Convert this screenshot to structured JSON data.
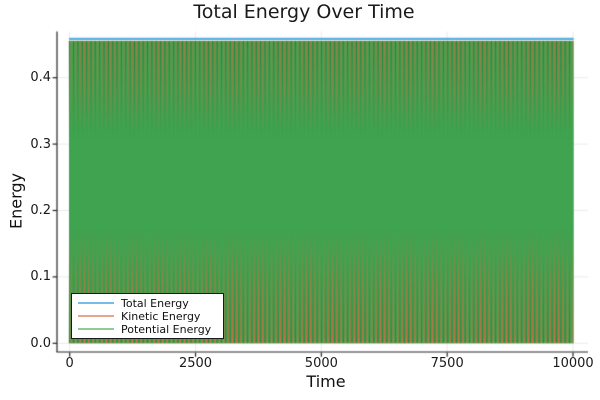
{
  "title": "Total Energy Over Time",
  "chart_data": {
    "type": "line",
    "title": "Total Energy Over Time",
    "xlabel": "Time",
    "ylabel": "Energy",
    "x_range": [
      0,
      10000
    ],
    "xticks": [
      0,
      2500,
      5000,
      7500,
      10000
    ],
    "xtick_labels": [
      "0",
      "2500",
      "5000",
      "7500",
      "10000"
    ],
    "yticks": [
      0.0,
      0.1,
      0.2,
      0.3,
      0.4
    ],
    "ytick_labels": [
      "0.0",
      "0.1",
      "0.2",
      "0.3",
      "0.4"
    ],
    "grid": true,
    "grid_color": "#ececec",
    "spine_color": "#262626",
    "legend_position": "lower left",
    "total_energy": 0.4585,
    "oscillation_min": 0.0,
    "oscillation_max": 0.4555,
    "n_oscillations_visible": 116,
    "series": [
      {
        "name": "Total Energy",
        "legend_color": "#76bde8",
        "plot_color": "#56b1e4",
        "shape": "constant",
        "value": 0.4585
      },
      {
        "name": "Kinetic Energy",
        "legend_color": "#e9a48f",
        "plot_color": "#d66540",
        "shape": "dense-oscillation sin^2 between 0 and total energy"
      },
      {
        "name": "Potential Energy",
        "legend_color": "#90cb95",
        "plot_color": "#3fa34f",
        "shape": "dense-oscillation cos^2 between 0 and total energy"
      }
    ]
  }
}
